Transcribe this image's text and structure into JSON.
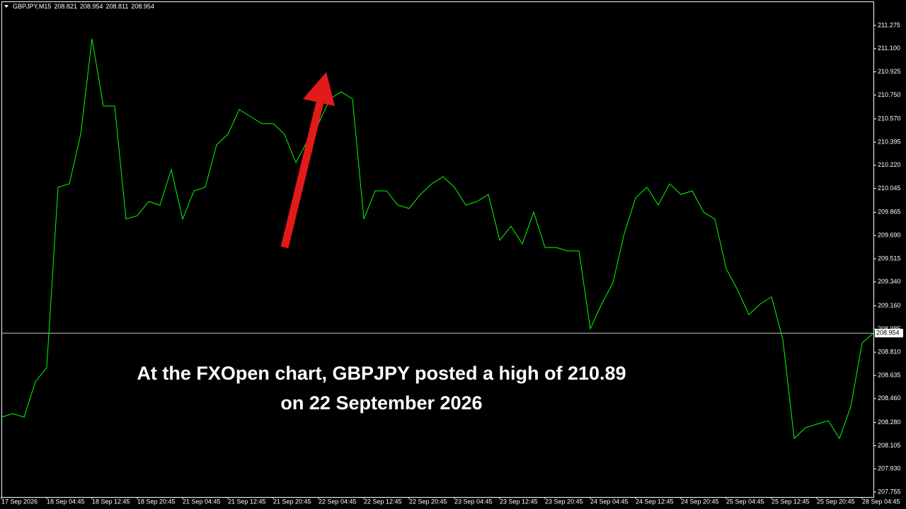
{
  "chart_data": {
    "type": "line",
    "symbol": "GBPJPY,M15",
    "ohlc": [
      208.821,
      208.954,
      208.811,
      208.954
    ],
    "annotation": [
      "At the FXOpen chart, GBPJPY posted a high of 210.89",
      "on 22 September 2026"
    ],
    "categories": [
      "17 Sep 2026",
      null,
      null,
      null,
      "18 Sep 04:45",
      null,
      null,
      null,
      "18 Sep 12:45",
      null,
      null,
      null,
      "18 Sep 20:45",
      null,
      null,
      null,
      "21 Sep 04:45",
      null,
      null,
      null,
      "21 Sep 12:45",
      null,
      null,
      null,
      "21 Sep 20:45",
      null,
      null,
      null,
      "22 Sep 04:45",
      null,
      null,
      null,
      "22 Sep 12:45",
      null,
      null,
      null,
      "22 Sep 20:45",
      null,
      null,
      null,
      "23 Sep 04:45",
      null,
      null,
      null,
      "23 Sep 12:45",
      null,
      null,
      null,
      "23 Sep 20:45",
      null,
      null,
      null,
      "24 Sep 04:45",
      null,
      null,
      null,
      "24 Sep 12:45",
      null,
      null,
      null,
      "24 Sep 20:45",
      null,
      null,
      null,
      "25 Sep 04:45",
      null,
      null,
      null,
      "25 Sep 12:45",
      null,
      null,
      null,
      "25 Sep 20:45",
      null,
      null,
      null,
      "28 Sep 04:45",
      null
    ],
    "series": [
      {
        "color": "#00ff00",
        "values": [
          208.32,
          208.347,
          208.32,
          208.587,
          208.694,
          210.054,
          210.08,
          210.454,
          211.174,
          210.667,
          210.667,
          209.814,
          209.84,
          209.947,
          209.92,
          210.187,
          209.814,
          210.027,
          210.054,
          210.374,
          210.454,
          210.64,
          210.587,
          210.534,
          210.534,
          210.454,
          210.24,
          210.4,
          210.534,
          210.72,
          210.774,
          210.72,
          209.814,
          210.027,
          210.027,
          209.92,
          209.894,
          210.0,
          210.08,
          210.134,
          210.054,
          209.92,
          209.947,
          210.0,
          209.654,
          209.76,
          209.627,
          209.867,
          209.6,
          209.6,
          209.574,
          209.574,
          208.987,
          209.174,
          209.334,
          209.707,
          209.974,
          210.054,
          209.92,
          210.08,
          210.0,
          210.027,
          209.867,
          209.814,
          209.44,
          209.28,
          209.094,
          209.174,
          209.227,
          208.907,
          208.16,
          208.24,
          208.267,
          208.294,
          208.16,
          208.4,
          208.88,
          208.954
        ]
      }
    ],
    "last_price": 208.954,
    "last_price_color": "#c0c0c0",
    "ylim": [
      207.734,
      211.456
    ],
    "yticks": [
      {
        "value": 211.275,
        "label": "211.275"
      },
      {
        "value": 211.1,
        "label": "211.100"
      },
      {
        "value": 210.925,
        "label": "210.925"
      },
      {
        "value": 210.75,
        "label": "210.750"
      },
      {
        "value": 210.57,
        "label": "210.570"
      },
      {
        "value": 210.395,
        "label": "210.395"
      },
      {
        "value": 210.22,
        "label": "210.220"
      },
      {
        "value": 210.045,
        "label": "210.045"
      },
      {
        "value": 209.865,
        "label": "209.865"
      },
      {
        "value": 209.69,
        "label": "209.690"
      },
      {
        "value": 209.515,
        "label": "209.515"
      },
      {
        "value": 209.34,
        "label": "209.340"
      },
      {
        "value": 209.16,
        "label": "209.160"
      },
      {
        "value": 208.985,
        "label": "208.985"
      },
      {
        "value": 208.81,
        "label": "208.810"
      },
      {
        "value": 208.635,
        "label": "208.635"
      },
      {
        "value": 208.46,
        "label": "208.460"
      },
      {
        "value": 208.28,
        "label": "208.280"
      },
      {
        "value": 208.105,
        "label": "208.105"
      },
      {
        "value": 207.93,
        "label": "207.930"
      },
      {
        "value": 207.755,
        "label": "207.755"
      }
    ]
  }
}
